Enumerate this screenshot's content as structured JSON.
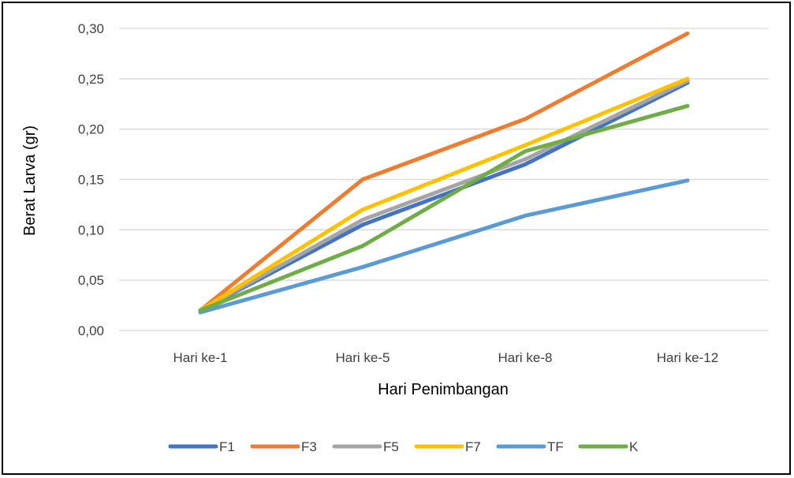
{
  "chart_data": {
    "type": "line",
    "title": "",
    "xlabel": "Hari Penimbangan",
    "ylabel": "Berat Larva (gr)",
    "categories": [
      "Hari ke-1",
      "Hari ke-5",
      "Hari ke-8",
      "Hari ke-12"
    ],
    "ylim": [
      0,
      0.3
    ],
    "yticks": [
      "0,00",
      "0,05",
      "0,10",
      "0,15",
      "0,20",
      "0,25",
      "0,30"
    ],
    "grid": true,
    "legend": "bottom",
    "series": [
      {
        "name": "F1",
        "color": "#4472C4",
        "values": [
          0.02,
          0.105,
          0.165,
          0.246
        ]
      },
      {
        "name": "F3",
        "color": "#ED7D31",
        "values": [
          0.02,
          0.15,
          0.21,
          0.295
        ]
      },
      {
        "name": "F5",
        "color": "#A5A5A5",
        "values": [
          0.02,
          0.11,
          0.17,
          0.248
        ]
      },
      {
        "name": "F7",
        "color": "#FFC000",
        "values": [
          0.02,
          0.12,
          0.184,
          0.25
        ]
      },
      {
        "name": "TF",
        "color": "#5B9BD5",
        "values": [
          0.018,
          0.063,
          0.114,
          0.149
        ]
      },
      {
        "name": "K",
        "color": "#70AD47",
        "values": [
          0.02,
          0.084,
          0.178,
          0.223
        ]
      }
    ]
  }
}
